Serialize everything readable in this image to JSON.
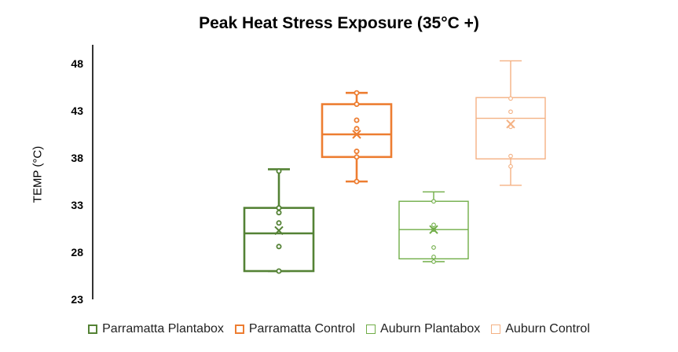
{
  "chart_data": {
    "type": "boxplot",
    "title": "Peak Heat Stress Exposure (35°C +)",
    "ylabel": "TEMP (°C)",
    "xlabel": "",
    "ylim": [
      23,
      50
    ],
    "yticks": [
      "23",
      "28",
      "33",
      "38",
      "43",
      "48"
    ],
    "grid": false,
    "legend_position": "bottom",
    "series": [
      {
        "name": "Parramatta Plantabox",
        "color": "#548235",
        "stroke": "thick",
        "min": 26.0,
        "q1": 26.0,
        "median": 30.0,
        "q3": 32.7,
        "max": 36.8,
        "mean": 30.3,
        "points": [
          36.6,
          32.7,
          32.2,
          31.1,
          28.6,
          26.0
        ]
      },
      {
        "name": "Parramatta Control",
        "color": "#ED7D31",
        "stroke": "thick",
        "min": 35.5,
        "q1": 38.1,
        "median": 40.5,
        "q3": 43.7,
        "max": 44.9,
        "mean": 40.5,
        "points": [
          44.9,
          43.7,
          42.0,
          41.1,
          38.7,
          38.1,
          35.5
        ]
      },
      {
        "name": "Auburn Plantabox",
        "color": "#70AD47",
        "stroke": "thin",
        "min": 27.0,
        "q1": 27.3,
        "median": 30.4,
        "q3": 33.4,
        "max": 34.4,
        "mean": 30.4,
        "points": [
          33.4,
          30.9,
          30.4,
          28.5,
          27.5,
          27.0
        ]
      },
      {
        "name": "Auburn Control",
        "color": "#F4B183",
        "stroke": "thin",
        "min": 35.1,
        "q1": 37.9,
        "median": 42.2,
        "q3": 44.4,
        "max": 48.3,
        "mean": 41.6,
        "points": [
          44.3,
          42.9,
          41.3,
          38.2,
          37.1
        ]
      }
    ]
  }
}
